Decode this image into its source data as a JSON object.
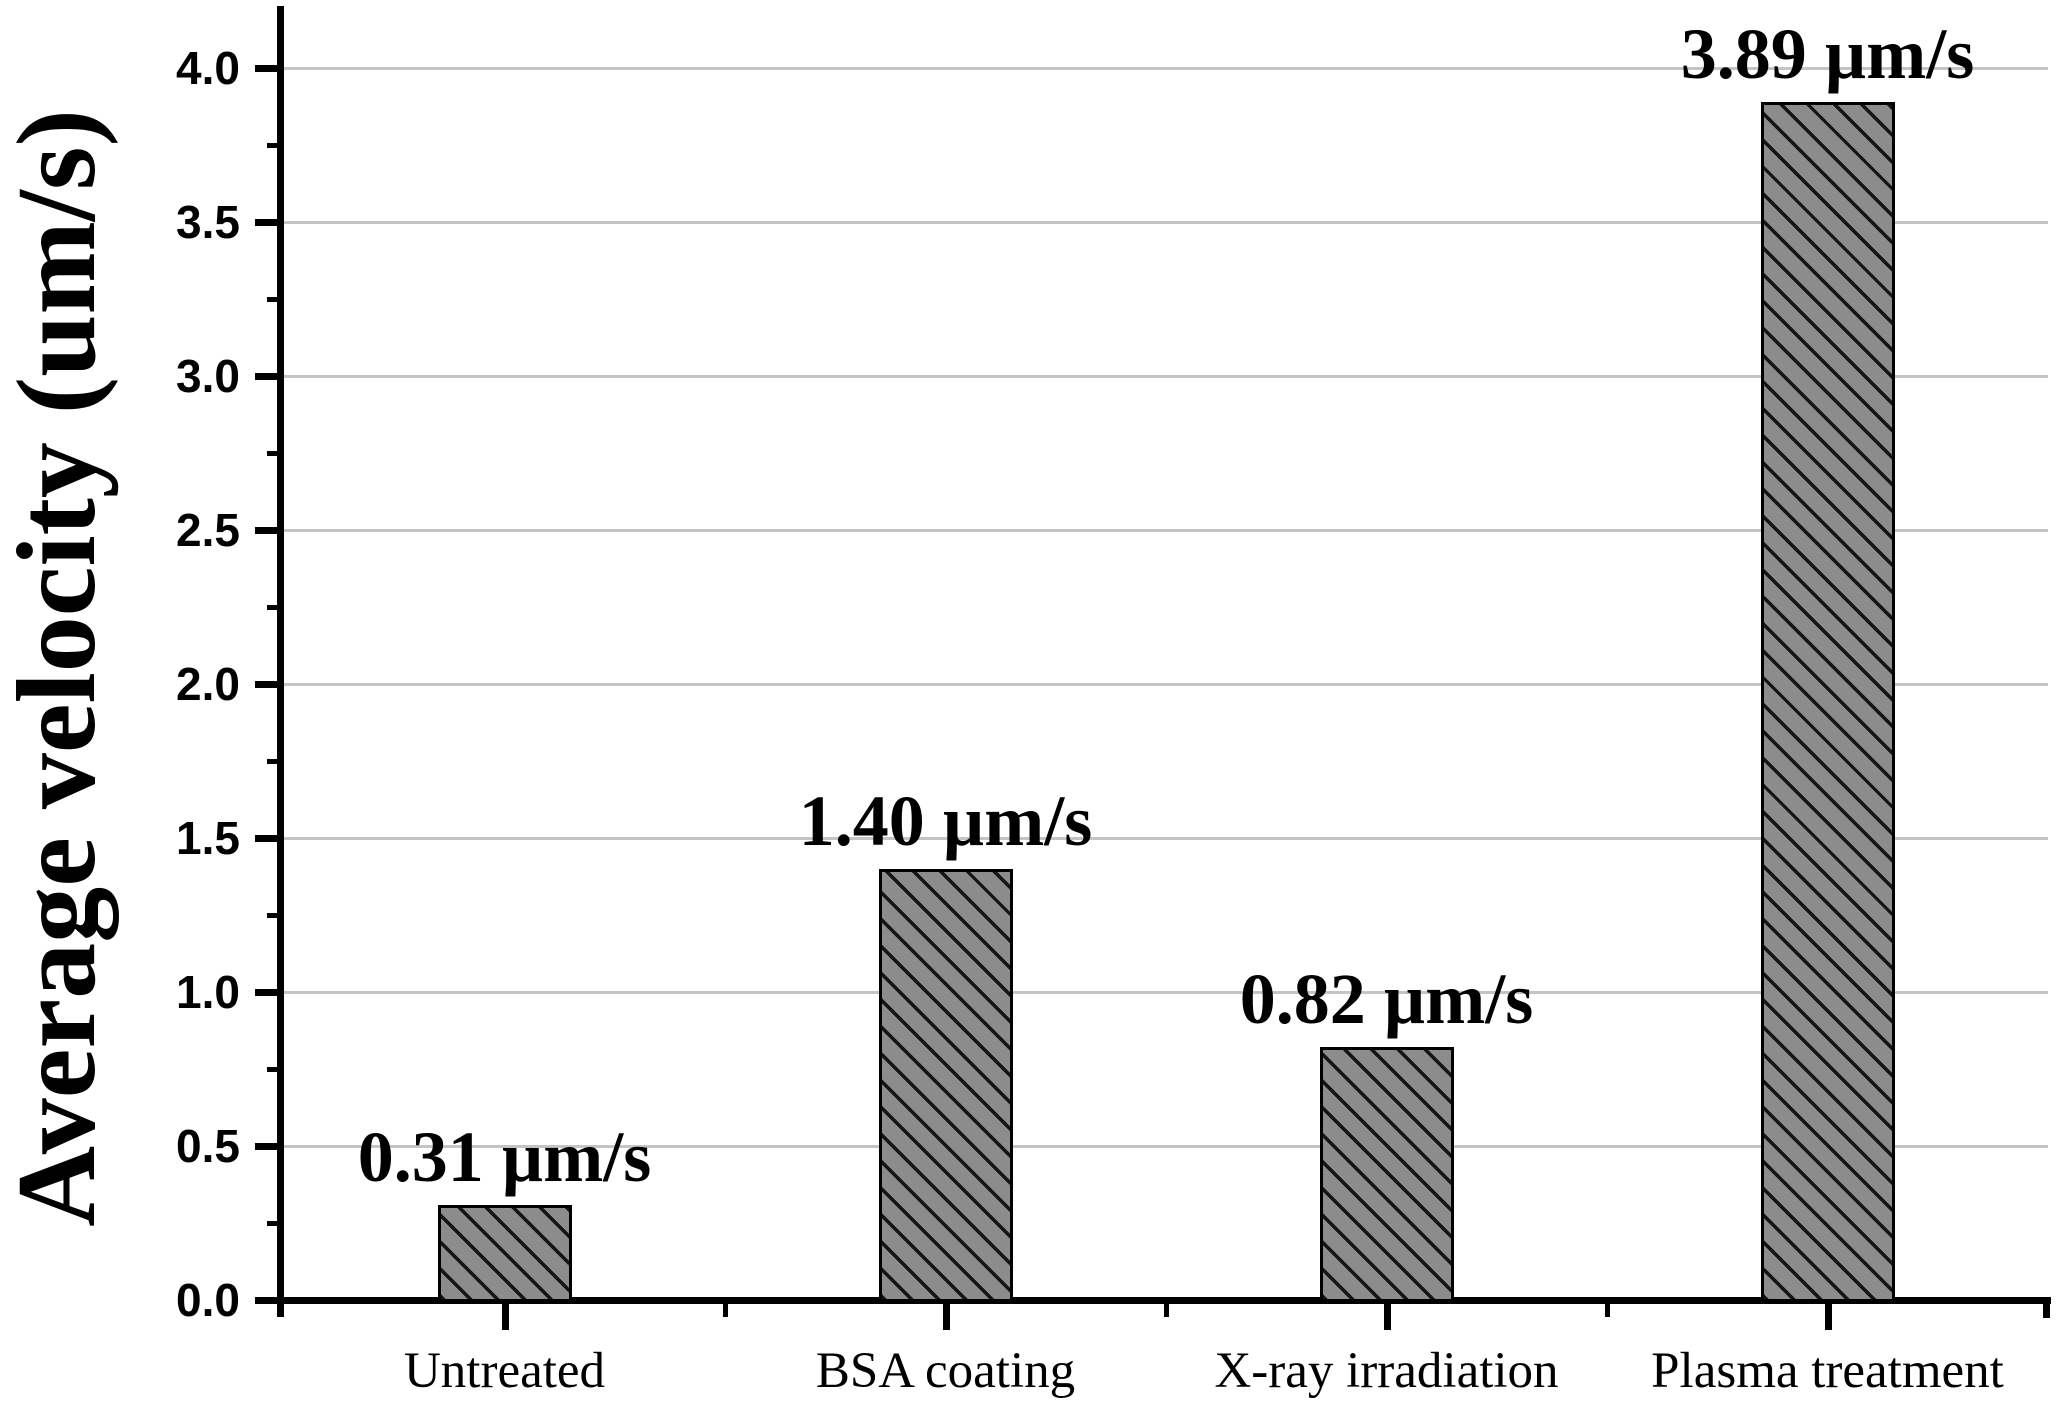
{
  "chart_data": {
    "type": "bar",
    "title": "",
    "ylabel": "Average velocity (um/s)",
    "xlabel": "",
    "categories": [
      "Untreated",
      "BSA coating",
      "X-ray irradiation",
      "Plasma treatment"
    ],
    "values": [
      0.31,
      1.4,
      0.82,
      3.89
    ],
    "bar_labels": [
      "0.31 µm/s",
      "1.40 µm/s",
      "0.82 µm/s",
      "3.89 µm/s"
    ],
    "y_tick_labels": [
      "0.0",
      "0.5",
      "1.0",
      "1.5",
      "2.0",
      "2.5",
      "3.0",
      "3.5",
      "4.0"
    ],
    "y_tick_step": 0.5,
    "y_minor_tick_step": 0.25,
    "ylim": [
      0,
      4.2
    ],
    "grid": "horizontal-major-only",
    "legend_position": "none",
    "hatch_pattern": "diagonal-backslash",
    "colors": {
      "bar_fill": "#8c8c8c",
      "bar_hatch": "#151515",
      "bar_border": "#000000",
      "gridline": "#c4c4c4",
      "axis": "#000000",
      "text": "#000000",
      "background": "#ffffff"
    }
  }
}
